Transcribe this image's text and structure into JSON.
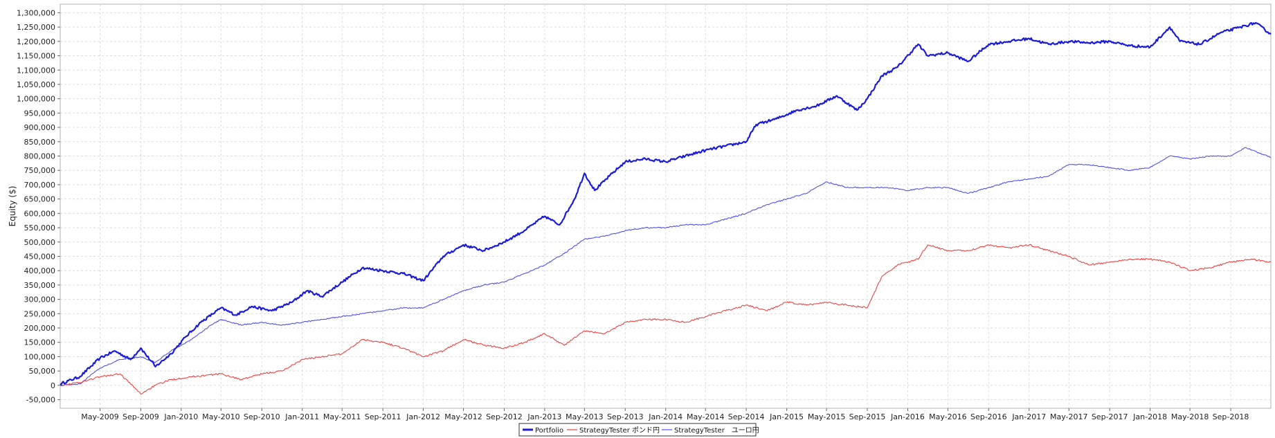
{
  "chart_data": {
    "type": "line",
    "title": "",
    "xlabel": "",
    "ylabel": "Equity ($)",
    "ylim": [
      -80000,
      1330000
    ],
    "xlim": [
      "2009-01-01",
      "2018-12-31"
    ],
    "yticks": [
      -50000,
      0,
      50000,
      100000,
      150000,
      200000,
      250000,
      300000,
      350000,
      400000,
      450000,
      500000,
      550000,
      600000,
      650000,
      700000,
      750000,
      800000,
      850000,
      900000,
      950000,
      1000000,
      1050000,
      1100000,
      1150000,
      1200000,
      1250000,
      1300000
    ],
    "ytick_labels": [
      "-50,000",
      "0",
      "50,000",
      "100,000",
      "150,000",
      "200,000",
      "250,000",
      "300,000",
      "350,000",
      "400,000",
      "450,000",
      "500,000",
      "550,000",
      "600,000",
      "650,000",
      "700,000",
      "750,000",
      "800,000",
      "850,000",
      "900,000",
      "950,000",
      "1,000,000",
      "1,050,000",
      "1,100,000",
      "1,150,000",
      "1,200,000",
      "1,250,000",
      "1,300,000"
    ],
    "xticks": [
      "2009-05-01",
      "2009-09-01",
      "2010-01-01",
      "2010-05-01",
      "2010-09-01",
      "2011-01-01",
      "2011-05-01",
      "2011-09-01",
      "2012-01-01",
      "2012-05-01",
      "2012-09-01",
      "2013-01-01",
      "2013-05-01",
      "2013-09-01",
      "2014-01-01",
      "2014-05-01",
      "2014-09-01",
      "2015-01-01",
      "2015-05-01",
      "2015-09-01",
      "2016-01-01",
      "2016-05-01",
      "2016-09-01",
      "2017-01-01",
      "2017-05-01",
      "2017-09-01",
      "2018-01-01",
      "2018-05-01",
      "2018-09-01"
    ],
    "xtick_labels": [
      "May-2009",
      "Sep-2009",
      "Jan-2010",
      "May-2010",
      "Sep-2010",
      "Jan-2011",
      "May-2011",
      "Sep-2011",
      "Jan-2012",
      "May-2012",
      "Sep-2012",
      "Jan-2013",
      "May-2013",
      "Sep-2013",
      "Jan-2014",
      "May-2014",
      "Sep-2014",
      "Jan-2015",
      "May-2015",
      "Sep-2015",
      "Jan-2016",
      "May-2016",
      "Sep-2016",
      "Jan-2017",
      "May-2017",
      "Sep-2017",
      "Jan-2018",
      "May-2018",
      "Sep-2018"
    ],
    "grid": true,
    "legend_position": "bottom-center",
    "series": [
      {
        "name": "Portfolio",
        "color": "#1a1adb",
        "x": [
          "2009-01-01",
          "2009-03-01",
          "2009-05-01",
          "2009-06-15",
          "2009-08-01",
          "2009-09-01",
          "2009-10-15",
          "2009-12-01",
          "2010-01-15",
          "2010-03-01",
          "2010-05-01",
          "2010-06-15",
          "2010-08-01",
          "2010-10-01",
          "2010-12-01",
          "2011-01-15",
          "2011-03-01",
          "2011-05-01",
          "2011-07-01",
          "2011-09-01",
          "2011-11-01",
          "2012-01-01",
          "2012-03-01",
          "2012-05-01",
          "2012-07-01",
          "2012-09-01",
          "2012-11-01",
          "2013-01-01",
          "2013-02-15",
          "2013-04-01",
          "2013-05-01",
          "2013-06-01",
          "2013-07-15",
          "2013-09-01",
          "2013-11-01",
          "2014-01-01",
          "2014-03-01",
          "2014-05-01",
          "2014-07-01",
          "2014-09-01",
          "2014-10-01",
          "2014-12-01",
          "2015-02-01",
          "2015-04-01",
          "2015-06-01",
          "2015-08-01",
          "2015-09-01",
          "2015-10-15",
          "2015-12-01",
          "2016-02-01",
          "2016-03-01",
          "2016-05-01",
          "2016-07-01",
          "2016-09-01",
          "2016-11-01",
          "2017-01-01",
          "2017-03-01",
          "2017-05-01",
          "2017-07-01",
          "2017-09-01",
          "2017-11-01",
          "2018-01-01",
          "2018-03-01",
          "2018-04-01",
          "2018-06-01",
          "2018-08-01",
          "2018-10-01",
          "2018-11-15",
          "2018-12-31"
        ],
        "y": [
          5000,
          30000,
          95000,
          120000,
          90000,
          130000,
          65000,
          110000,
          170000,
          220000,
          270000,
          245000,
          275000,
          260000,
          290000,
          330000,
          310000,
          360000,
          410000,
          400000,
          390000,
          365000,
          450000,
          490000,
          470000,
          500000,
          540000,
          590000,
          560000,
          650000,
          740000,
          680000,
          730000,
          780000,
          790000,
          780000,
          800000,
          820000,
          835000,
          850000,
          910000,
          930000,
          960000,
          975000,
          1010000,
          960000,
          1000000,
          1080000,
          1110000,
          1190000,
          1150000,
          1160000,
          1130000,
          1190000,
          1200000,
          1210000,
          1190000,
          1200000,
          1195000,
          1200000,
          1185000,
          1180000,
          1250000,
          1200000,
          1190000,
          1230000,
          1250000,
          1265000,
          1225000
        ]
      },
      {
        "name": "StrategyTester ポンド円",
        "color": "#f04040",
        "x": [
          "2009-01-01",
          "2009-03-01",
          "2009-05-01",
          "2009-07-01",
          "2009-09-01",
          "2009-10-15",
          "2009-12-01",
          "2010-02-01",
          "2010-05-01",
          "2010-07-01",
          "2010-09-01",
          "2010-11-01",
          "2011-01-01",
          "2011-03-01",
          "2011-05-01",
          "2011-07-01",
          "2011-09-01",
          "2011-11-01",
          "2012-01-01",
          "2012-03-01",
          "2012-05-01",
          "2012-07-01",
          "2012-09-01",
          "2012-11-01",
          "2013-01-01",
          "2013-03-01",
          "2013-05-01",
          "2013-07-01",
          "2013-09-01",
          "2013-11-01",
          "2014-01-01",
          "2014-03-01",
          "2014-05-01",
          "2014-07-01",
          "2014-09-01",
          "2014-11-01",
          "2015-01-01",
          "2015-03-01",
          "2015-05-01",
          "2015-07-01",
          "2015-09-01",
          "2015-10-15",
          "2015-12-01",
          "2016-02-01",
          "2016-03-01",
          "2016-05-01",
          "2016-07-01",
          "2016-09-01",
          "2016-11-01",
          "2017-01-01",
          "2017-03-01",
          "2017-05-01",
          "2017-07-01",
          "2017-09-01",
          "2017-11-01",
          "2018-01-01",
          "2018-03-01",
          "2018-05-01",
          "2018-07-01",
          "2018-09-01",
          "2018-11-01",
          "2018-12-31"
        ],
        "y": [
          0,
          10000,
          30000,
          40000,
          -30000,
          0,
          20000,
          30000,
          40000,
          20000,
          40000,
          50000,
          90000,
          100000,
          110000,
          160000,
          150000,
          130000,
          100000,
          120000,
          160000,
          140000,
          130000,
          150000,
          180000,
          140000,
          190000,
          180000,
          220000,
          230000,
          230000,
          220000,
          240000,
          260000,
          280000,
          260000,
          290000,
          280000,
          290000,
          280000,
          270000,
          380000,
          420000,
          440000,
          490000,
          470000,
          470000,
          490000,
          480000,
          490000,
          470000,
          450000,
          420000,
          430000,
          440000,
          440000,
          430000,
          400000,
          410000,
          430000,
          440000,
          430000
        ]
      },
      {
        "name": "StrategyTester　ユーロ円",
        "color": "#5050ee",
        "x": [
          "2009-01-01",
          "2009-03-01",
          "2009-05-01",
          "2009-07-01",
          "2009-09-01",
          "2009-10-15",
          "2009-12-01",
          "2010-02-01",
          "2010-04-01",
          "2010-05-01",
          "2010-07-01",
          "2010-09-01",
          "2010-11-01",
          "2011-01-01",
          "2011-03-01",
          "2011-05-01",
          "2011-07-01",
          "2011-09-01",
          "2011-11-01",
          "2012-01-01",
          "2012-03-01",
          "2012-05-01",
          "2012-07-01",
          "2012-09-01",
          "2012-11-01",
          "2013-01-01",
          "2013-03-01",
          "2013-05-01",
          "2013-07-01",
          "2013-09-01",
          "2013-11-01",
          "2014-01-01",
          "2014-03-01",
          "2014-05-01",
          "2014-07-01",
          "2014-09-01",
          "2014-11-01",
          "2015-01-01",
          "2015-03-01",
          "2015-05-01",
          "2015-07-01",
          "2015-09-01",
          "2015-11-01",
          "2016-01-01",
          "2016-03-01",
          "2016-05-01",
          "2016-07-01",
          "2016-09-01",
          "2016-11-01",
          "2017-01-01",
          "2017-03-01",
          "2017-05-01",
          "2017-07-01",
          "2017-09-01",
          "2017-11-01",
          "2018-01-01",
          "2018-03-01",
          "2018-05-01",
          "2018-07-01",
          "2018-09-01",
          "2018-10-15",
          "2018-12-31"
        ],
        "y": [
          0,
          5000,
          60000,
          90000,
          100000,
          80000,
          120000,
          160000,
          210000,
          230000,
          210000,
          220000,
          210000,
          220000,
          230000,
          240000,
          250000,
          260000,
          270000,
          270000,
          300000,
          330000,
          350000,
          360000,
          390000,
          420000,
          460000,
          510000,
          520000,
          540000,
          550000,
          550000,
          560000,
          560000,
          580000,
          600000,
          630000,
          650000,
          670000,
          710000,
          690000,
          690000,
          690000,
          680000,
          690000,
          690000,
          670000,
          690000,
          710000,
          720000,
          730000,
          770000,
          770000,
          760000,
          750000,
          760000,
          800000,
          790000,
          800000,
          800000,
          830000,
          795000
        ]
      }
    ]
  }
}
